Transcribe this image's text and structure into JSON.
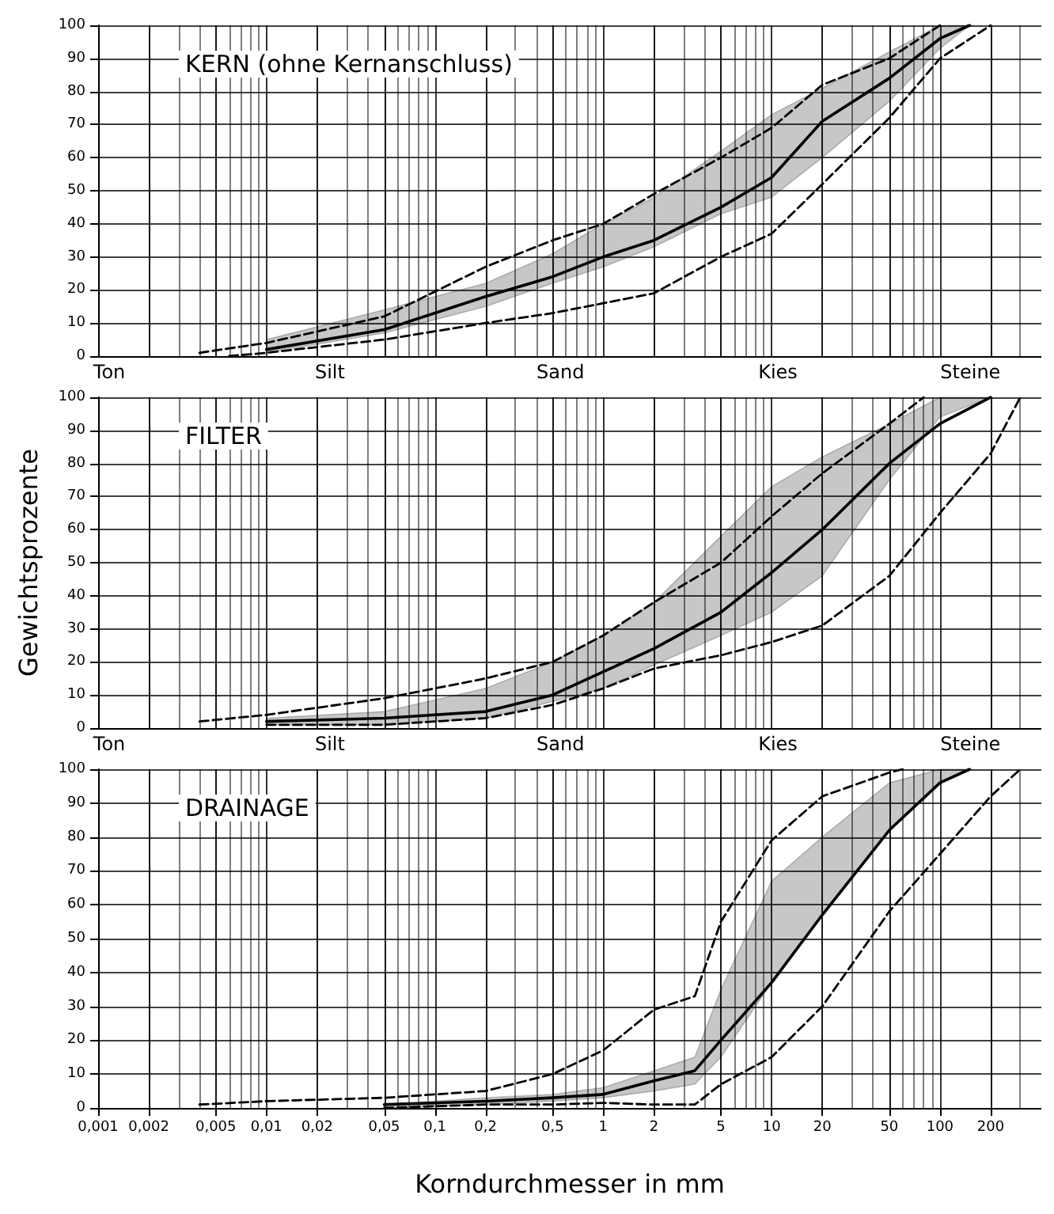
{
  "chart_data": [
    {
      "type": "line",
      "title": "KERN (ohne Kernanschluss)",
      "log": "x",
      "grid": true,
      "tick_labels": "y",
      "marker": "none",
      "xlim": [
        0.001,
        400
      ],
      "xticks": [
        0.001,
        0.002,
        0.005,
        0.01,
        0.02,
        0.05,
        0.1,
        0.2,
        0.5,
        1,
        2,
        5,
        10,
        20,
        50,
        100,
        200
      ],
      "ylim": [
        0,
        100
      ],
      "yticks": [
        0,
        10,
        20,
        30,
        40,
        50,
        60,
        70,
        80,
        90,
        100
      ],
      "annotations": [
        "Ton",
        "Silt",
        "Sand",
        "Kies",
        "Steine"
      ],
      "series": [
        {
          "color": "#000000",
          "line_style": "solid",
          "x": [
            0.01,
            0.05,
            0.2,
            0.5,
            1,
            2,
            5,
            10,
            20,
            50,
            100,
            150
          ],
          "values": [
            2,
            8,
            18,
            24,
            30,
            35,
            45,
            54,
            71,
            84,
            96,
            100
          ],
          "lower": [
            1,
            7,
            15,
            22,
            27,
            33,
            43,
            48,
            60,
            77,
            93,
            100
          ],
          "upper": [
            5,
            14,
            22,
            31,
            40,
            48,
            62,
            73,
            81,
            92,
            100,
            100
          ]
        },
        {
          "color": "#000000",
          "line_style": "dashed",
          "x": [
            0.004,
            0.01,
            0.05,
            0.2,
            0.5,
            1,
            2,
            5,
            10,
            20,
            50,
            100
          ],
          "values": [
            1,
            4,
            12,
            27,
            35,
            40,
            49,
            60,
            69,
            82,
            90,
            100
          ]
        },
        {
          "color": "#000000",
          "line_style": "dashed",
          "x": [
            0.006,
            0.01,
            0.05,
            0.2,
            0.5,
            1,
            2,
            5,
            10,
            20,
            50,
            100,
            200
          ],
          "values": [
            0,
            1,
            5,
            10,
            13,
            16,
            19,
            30,
            37,
            52,
            72,
            90,
            100
          ]
        }
      ]
    },
    {
      "type": "line",
      "title": "FILTER",
      "ylabel": "Gewichtsprozente",
      "log": "x",
      "grid": true,
      "tick_labels": "y",
      "marker": "none",
      "xlim": [
        0.001,
        400
      ],
      "xticks": [
        0.001,
        0.002,
        0.005,
        0.01,
        0.02,
        0.05,
        0.1,
        0.2,
        0.5,
        1,
        2,
        5,
        10,
        20,
        50,
        100,
        200
      ],
      "ylim": [
        0,
        100
      ],
      "yticks": [
        0,
        10,
        20,
        30,
        40,
        50,
        60,
        70,
        80,
        90,
        100
      ],
      "annotations": [
        "Ton",
        "Silt",
        "Sand",
        "Kies",
        "Steine"
      ],
      "series": [
        {
          "color": "#000000",
          "line_style": "solid",
          "x": [
            0.01,
            0.05,
            0.2,
            0.5,
            1,
            2,
            5,
            10,
            20,
            50,
            100,
            200
          ],
          "values": [
            2,
            3,
            5,
            10,
            17,
            24,
            35,
            47,
            60,
            80,
            92,
            100
          ],
          "lower": [
            1,
            1,
            3,
            8,
            12,
            19,
            28,
            35,
            46,
            75,
            94,
            100
          ],
          "upper": [
            3,
            5,
            12,
            20,
            28,
            38,
            58,
            73,
            82,
            92,
            100,
            100
          ]
        },
        {
          "color": "#000000",
          "line_style": "dashed",
          "x": [
            0.004,
            0.01,
            0.05,
            0.2,
            0.5,
            1,
            2,
            5,
            10,
            20,
            50,
            80
          ],
          "values": [
            2,
            4,
            9,
            15,
            20,
            28,
            38,
            50,
            64,
            77,
            92,
            100
          ]
        },
        {
          "color": "#000000",
          "line_style": "dashed",
          "x": [
            0.01,
            0.05,
            0.2,
            0.5,
            1,
            2,
            5,
            10,
            20,
            50,
            100,
            200,
            300
          ],
          "values": [
            1,
            1,
            3,
            7,
            12,
            18,
            22,
            26,
            31,
            46,
            65,
            83,
            100
          ]
        }
      ]
    },
    {
      "type": "line",
      "title": "DRAINAGE",
      "xlabel": "Korndurchmesser in mm",
      "log": "x",
      "grid": true,
      "marker": "none",
      "xlim": [
        0.001,
        400
      ],
      "xticks": [
        {
          "value": 0.001,
          "label": "0,001"
        },
        {
          "value": 0.002,
          "label": "0,002"
        },
        {
          "value": 0.005,
          "label": "0,005"
        },
        {
          "value": 0.01,
          "label": "0,01"
        },
        {
          "value": 0.02,
          "label": "0,02"
        },
        {
          "value": 0.05,
          "label": "0,05"
        },
        {
          "value": 0.1,
          "label": "0,1"
        },
        {
          "value": 0.2,
          "label": "0,2"
        },
        {
          "value": 0.5,
          "label": "0,5"
        },
        1,
        2,
        5,
        10,
        20,
        50,
        100,
        200
      ],
      "ylim": [
        0,
        100
      ],
      "yticks": [
        0,
        10,
        20,
        30,
        40,
        50,
        60,
        70,
        80,
        90,
        100
      ],
      "series": [
        {
          "color": "#000000",
          "line_style": "solid",
          "x": [
            0.05,
            0.2,
            0.5,
            1,
            2,
            3.5,
            5,
            10,
            20,
            50,
            100,
            150
          ],
          "values": [
            1,
            2,
            3,
            4,
            8,
            11,
            20,
            37,
            57,
            82,
            96,
            100
          ],
          "lower": [
            0,
            1,
            2,
            3,
            5,
            7,
            15,
            37,
            57,
            82,
            96,
            100
          ],
          "upper": [
            1,
            3,
            4,
            6,
            11,
            15,
            35,
            67,
            80,
            96,
            100,
            100
          ]
        },
        {
          "color": "#000000",
          "line_style": "dashed",
          "x": [
            0.004,
            0.01,
            0.05,
            0.2,
            0.5,
            1,
            2,
            3.5,
            5,
            10,
            20,
            50,
            60
          ],
          "values": [
            1,
            2,
            3,
            5,
            10,
            17,
            29,
            33,
            55,
            79,
            92,
            99,
            100
          ]
        },
        {
          "color": "#000000",
          "line_style": "dashed",
          "x": [
            0.05,
            0.2,
            0.5,
            1,
            2,
            3.5,
            5,
            10,
            20,
            50,
            100,
            200,
            300
          ],
          "values": [
            0,
            1,
            1,
            1.5,
            1,
            1,
            7,
            15,
            30,
            58,
            75,
            92,
            100
          ]
        }
      ]
    }
  ]
}
